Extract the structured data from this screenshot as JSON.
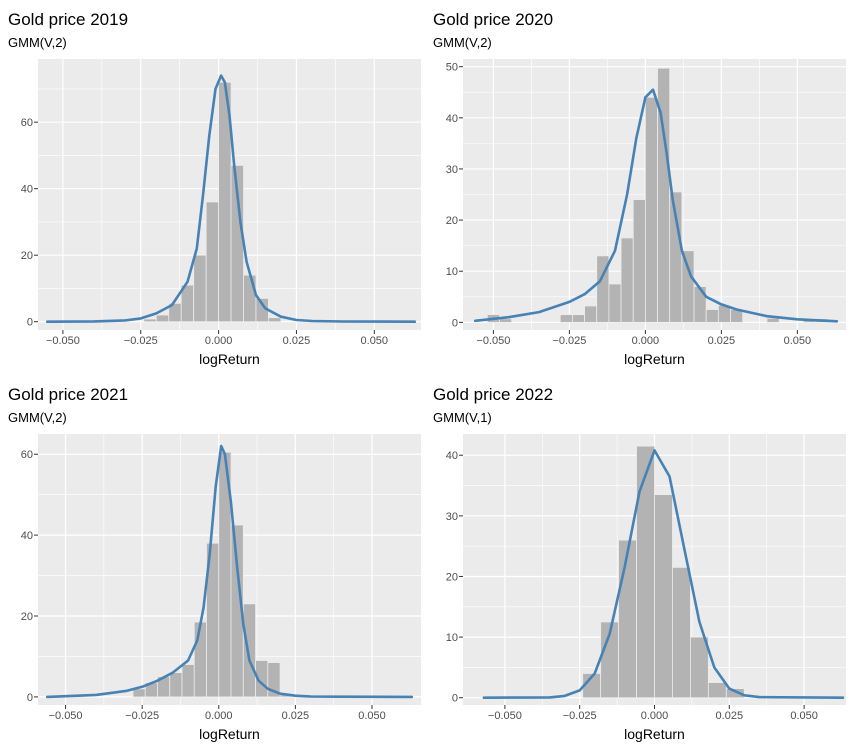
{
  "chart_data": [
    {
      "type": "histogram",
      "title": "Gold price 2019",
      "subtitle": "GMM(V,2)",
      "xlabel": "logReturn",
      "xlim": [
        -0.058,
        0.065
      ],
      "ylim": [
        -2.5,
        79
      ],
      "x_ticks": [
        -0.05,
        -0.025,
        0,
        0.025,
        0.05
      ],
      "x_tick_labels": [
        "−0.050",
        "−0.025",
        "0.000",
        "0.025",
        "0.050"
      ],
      "y_ticks": [
        0,
        20,
        40,
        60
      ],
      "y_tick_labels": [
        "0",
        "20",
        "40",
        "60"
      ],
      "bin_width": 0.004,
      "bars": [
        {
          "x": -0.024,
          "y": 0.8
        },
        {
          "x": -0.02,
          "y": 2
        },
        {
          "x": -0.016,
          "y": 5.5
        },
        {
          "x": -0.012,
          "y": 11
        },
        {
          "x": -0.008,
          "y": 20
        },
        {
          "x": -0.004,
          "y": 36
        },
        {
          "x": 0.0,
          "y": 72
        },
        {
          "x": 0.004,
          "y": 47
        },
        {
          "x": 0.008,
          "y": 14
        },
        {
          "x": 0.012,
          "y": 7
        },
        {
          "x": 0.016,
          "y": 1.2
        }
      ],
      "curve": {
        "color": "#4682b4",
        "x": [
          -0.055,
          -0.04,
          -0.03,
          -0.025,
          -0.02,
          -0.015,
          -0.01,
          -0.007,
          -0.005,
          -0.003,
          -0.001,
          0.0008,
          0.002,
          0.0035,
          0.005,
          0.007,
          0.009,
          0.012,
          0.015,
          0.02,
          0.025,
          0.03,
          0.04,
          0.063
        ],
        "y": [
          0,
          0.1,
          0.4,
          1,
          2.5,
          5,
          12,
          22,
          38,
          56,
          70,
          74,
          72,
          62,
          47,
          30,
          18,
          8,
          4,
          1.5,
          0.5,
          0.2,
          0.05,
          0
        ]
      }
    },
    {
      "type": "histogram",
      "title": "Gold price 2020",
      "subtitle": "GMM(V,2)",
      "xlabel": "logReturn",
      "xlim": [
        -0.06,
        0.066
      ],
      "ylim": [
        -1.5,
        51.5
      ],
      "x_ticks": [
        -0.05,
        -0.025,
        0,
        0.025,
        0.05
      ],
      "x_tick_labels": [
        "−0.050",
        "−0.025",
        "0.000",
        "0.025",
        "0.050"
      ],
      "y_ticks": [
        0,
        10,
        20,
        30,
        40,
        50
      ],
      "y_tick_labels": [
        "0",
        "10",
        "20",
        "30",
        "40",
        "50"
      ],
      "bin_width": 0.004,
      "bars": [
        {
          "x": -0.052,
          "y": 1.5
        },
        {
          "x": -0.048,
          "y": 0.7
        },
        {
          "x": -0.028,
          "y": 1.5
        },
        {
          "x": -0.024,
          "y": 1.5
        },
        {
          "x": -0.02,
          "y": 3.2
        },
        {
          "x": -0.016,
          "y": 13
        },
        {
          "x": -0.012,
          "y": 7.5
        },
        {
          "x": -0.008,
          "y": 16.5
        },
        {
          "x": -0.004,
          "y": 24
        },
        {
          "x": 0.0,
          "y": 44
        },
        {
          "x": 0.004,
          "y": 49.7
        },
        {
          "x": 0.008,
          "y": 25.5
        },
        {
          "x": 0.012,
          "y": 14
        },
        {
          "x": 0.016,
          "y": 7
        },
        {
          "x": 0.02,
          "y": 2.5
        },
        {
          "x": 0.024,
          "y": 3.3
        },
        {
          "x": 0.028,
          "y": 2.5
        },
        {
          "x": 0.04,
          "y": 0.8
        },
        {
          "x": 0.052,
          "y": 0.7
        },
        {
          "x": 0.056,
          "y": 0.7
        }
      ],
      "curve": {
        "color": "#4682b4",
        "x": [
          -0.056,
          -0.045,
          -0.035,
          -0.025,
          -0.02,
          -0.015,
          -0.01,
          -0.006,
          -0.003,
          0,
          0.0025,
          0.005,
          0.007,
          0.009,
          0.012,
          0.015,
          0.02,
          0.025,
          0.03,
          0.04,
          0.05,
          0.063
        ],
        "y": [
          0.3,
          1,
          2,
          4,
          5.5,
          8,
          14,
          25,
          36,
          44,
          45.5,
          41,
          33,
          24,
          14,
          9,
          5,
          3.5,
          2.5,
          1.2,
          0.6,
          0.2
        ]
      }
    },
    {
      "type": "histogram",
      "title": "Gold price 2021",
      "subtitle": "GMM(V,2)",
      "xlabel": "logReturn",
      "xlim": [
        -0.059,
        0.066
      ],
      "ylim": [
        -2,
        65
      ],
      "x_ticks": [
        -0.05,
        -0.025,
        0,
        0.025,
        0.05
      ],
      "x_tick_labels": [
        "−0.050",
        "−0.025",
        "0.000",
        "0.025",
        "0.050"
      ],
      "y_ticks": [
        0,
        20,
        40,
        60
      ],
      "y_tick_labels": [
        "0",
        "20",
        "40",
        "60"
      ],
      "bin_width": 0.004,
      "bars": [
        {
          "x": -0.048,
          "y": 0.5
        },
        {
          "x": -0.028,
          "y": 2
        },
        {
          "x": -0.024,
          "y": 3.5
        },
        {
          "x": -0.02,
          "y": 5
        },
        {
          "x": -0.016,
          "y": 6
        },
        {
          "x": -0.012,
          "y": 8
        },
        {
          "x": -0.008,
          "y": 18.5
        },
        {
          "x": -0.004,
          "y": 38
        },
        {
          "x": 0.0,
          "y": 60.5
        },
        {
          "x": 0.004,
          "y": 42.5
        },
        {
          "x": 0.008,
          "y": 23
        },
        {
          "x": 0.012,
          "y": 9
        },
        {
          "x": 0.016,
          "y": 8.5
        },
        {
          "x": 0.02,
          "y": 0.5
        },
        {
          "x": 0.024,
          "y": 0.5
        }
      ],
      "curve": {
        "color": "#4682b4",
        "x": [
          -0.056,
          -0.04,
          -0.03,
          -0.025,
          -0.02,
          -0.015,
          -0.01,
          -0.007,
          -0.005,
          -0.003,
          -0.001,
          0.0008,
          0.002,
          0.004,
          0.006,
          0.008,
          0.01,
          0.013,
          0.016,
          0.02,
          0.025,
          0.03,
          0.04,
          0.063
        ],
        "y": [
          0,
          0.5,
          1.5,
          2.5,
          4,
          6,
          9,
          14,
          22,
          35,
          52,
          62,
          60,
          48,
          32,
          18,
          9,
          4,
          2,
          0.8,
          0.3,
          0.1,
          0.05,
          0
        ]
      }
    },
    {
      "type": "histogram",
      "title": "Gold price 2022",
      "subtitle": "GMM(V,1)",
      "xlabel": "logReturn",
      "xlim": [
        -0.064,
        0.064
      ],
      "ylim": [
        -1.2,
        43.5
      ],
      "x_ticks": [
        -0.05,
        -0.025,
        0,
        0.025,
        0.05
      ],
      "x_tick_labels": [
        "−0.050",
        "−0.025",
        "0.000",
        "0.025",
        "0.050"
      ],
      "y_ticks": [
        0,
        10,
        20,
        30,
        40
      ],
      "y_tick_labels": [
        "0",
        "10",
        "20",
        "30",
        "40"
      ],
      "bin_width": 0.006,
      "bars": [
        {
          "x": -0.024,
          "y": 4
        },
        {
          "x": -0.018,
          "y": 12.5
        },
        {
          "x": -0.012,
          "y": 26
        },
        {
          "x": -0.006,
          "y": 41.5
        },
        {
          "x": 0.0,
          "y": 33.5
        },
        {
          "x": 0.006,
          "y": 21.5
        },
        {
          "x": 0.012,
          "y": 10
        },
        {
          "x": 0.018,
          "y": 2.5
        },
        {
          "x": 0.024,
          "y": 1.5
        }
      ],
      "curve": {
        "color": "#4682b4",
        "x": [
          -0.057,
          -0.035,
          -0.03,
          -0.025,
          -0.02,
          -0.015,
          -0.01,
          -0.005,
          0,
          0.005,
          0.01,
          0.015,
          0.02,
          0.025,
          0.03,
          0.035,
          0.063
        ],
        "y": [
          0,
          0.05,
          0.3,
          1.2,
          4,
          10.5,
          21.5,
          34,
          40.8,
          36.5,
          24.5,
          12.5,
          5,
          1.5,
          0.4,
          0.1,
          0
        ]
      }
    }
  ]
}
